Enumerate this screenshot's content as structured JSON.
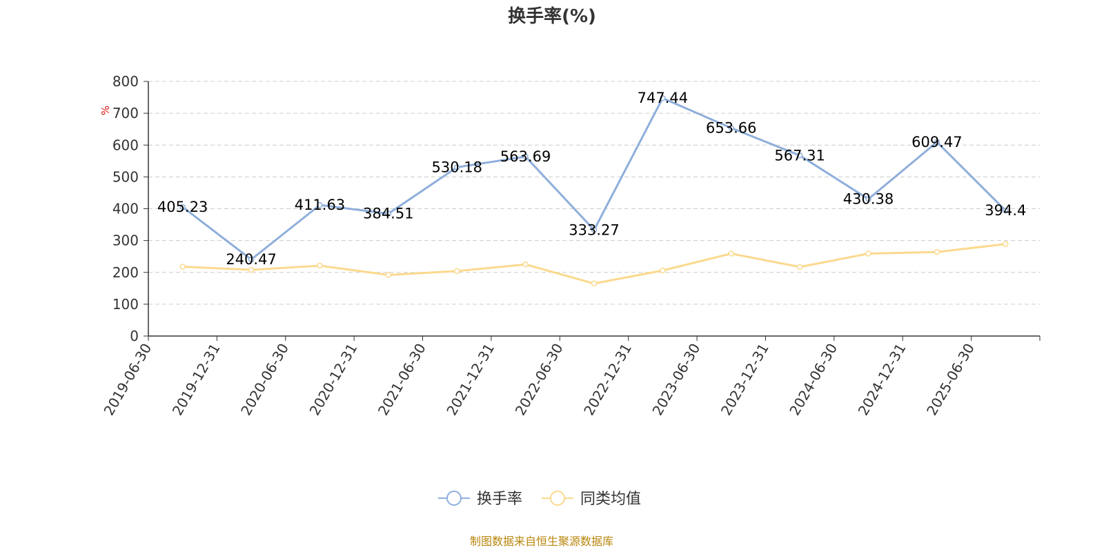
{
  "chart_data": {
    "type": "line",
    "title": "换手率(%)",
    "ylabel": "%",
    "ylim": [
      0,
      800
    ],
    "y_ticks": [
      0,
      100,
      200,
      300,
      400,
      500,
      600,
      700,
      800
    ],
    "grid": true,
    "legend_position": "bottom-center",
    "categories": [
      "2019-06-30",
      "2019-12-31",
      "2020-06-30",
      "2020-12-31",
      "2021-06-30",
      "2021-12-31",
      "2022-06-30",
      "2022-12-31",
      "2023-06-30",
      "2023-12-31",
      "2024-06-30",
      "2024-12-31",
      "2025-06-30"
    ],
    "series": [
      {
        "name": "换手率",
        "color": "#8eaedb",
        "values": [
          405.23,
          240.47,
          411.63,
          384.51,
          530.18,
          563.69,
          333.27,
          747.44,
          653.66,
          567.31,
          430.38,
          609.47,
          394.4
        ],
        "labels": [
          "405.23",
          "240.47",
          "411.63",
          "384.51",
          "530.18",
          "563.69",
          "333.27",
          "747.44",
          "653.66",
          "567.31",
          "430.38",
          "609.47",
          "394.4"
        ],
        "show_labels": true
      },
      {
        "name": "同类均值",
        "color": "#fbd98d",
        "values": [
          218,
          208,
          221,
          192,
          204,
          225,
          165,
          206,
          259,
          217,
          259,
          264,
          289
        ],
        "show_labels": false
      }
    ],
    "source": "制图数据来自恒生聚源数据库"
  }
}
